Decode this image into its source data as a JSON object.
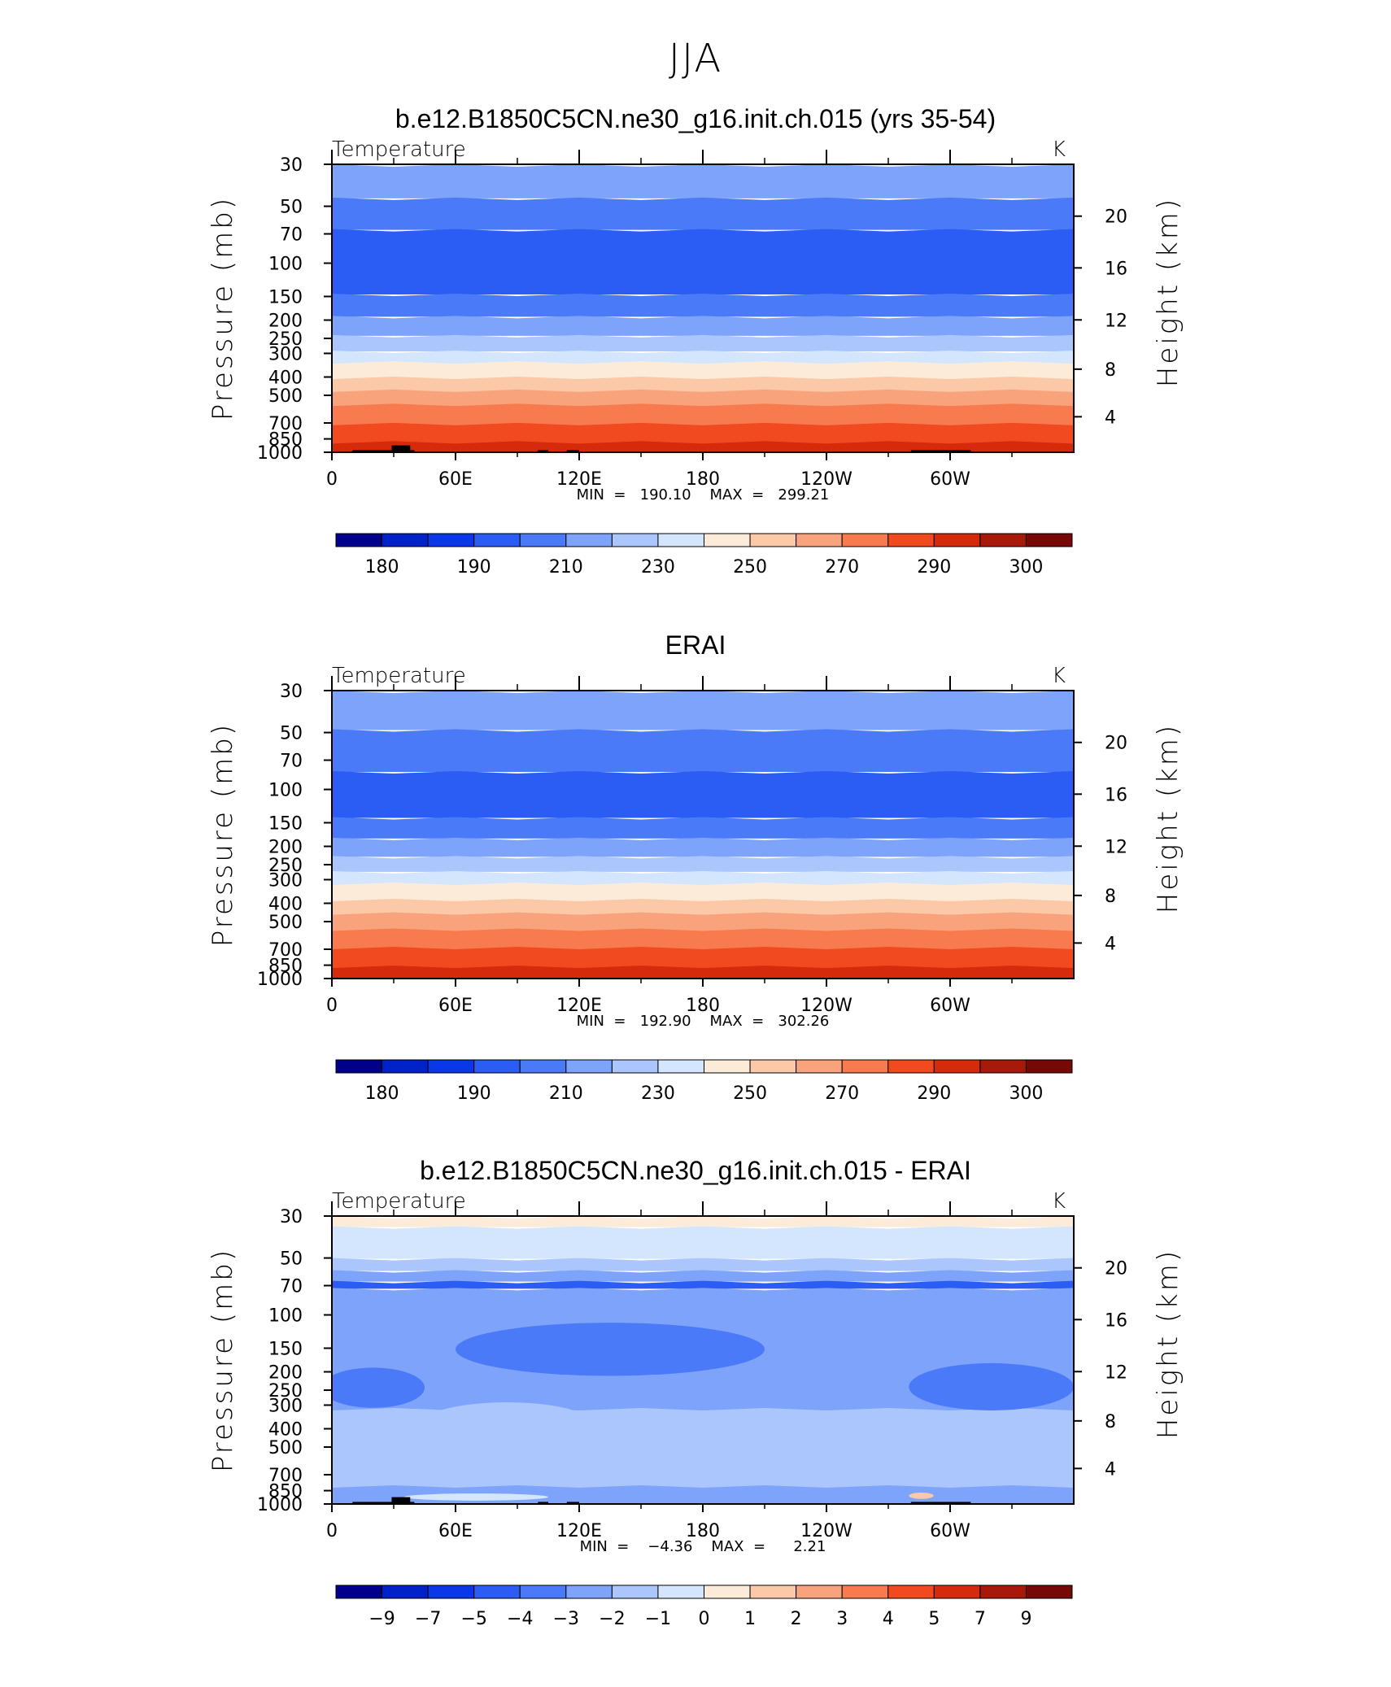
{
  "page_title": "JJA",
  "chart_data": [
    {
      "type": "heatmap",
      "title": "b.e12.B1850C5CN.ne30_g16.init.ch.015 (yrs 35-54)",
      "variable": "Temperature",
      "units": "K",
      "ylabel": "Pressure (mb)",
      "ylabel_right": "Height (km)",
      "x_ticks": [
        "0",
        "60E",
        "120E",
        "180",
        "120W",
        "60W"
      ],
      "x_tick_lon": [
        0,
        60,
        120,
        180,
        240,
        300
      ],
      "xlim": [
        0,
        360
      ],
      "y_ticks": [
        "30",
        "50",
        "70",
        "100",
        "150",
        "200",
        "250",
        "300",
        "400",
        "500",
        "700",
        "850",
        "1000"
      ],
      "y_tick_values": [
        30,
        50,
        70,
        100,
        150,
        200,
        250,
        300,
        400,
        500,
        700,
        850,
        1000
      ],
      "ylim": [
        1000,
        30
      ],
      "y_scale": "log",
      "height_ticks": [
        "20",
        "16",
        "12",
        "8",
        "4"
      ],
      "height_tick_pressure": [
        56.4,
        105.9,
        199.5,
        363.5,
        649
      ],
      "min_label": "MIN  =   190.10    MAX  =   299.21",
      "colorbar_labels": [
        "180",
        "190",
        "210",
        "230",
        "250",
        "270",
        "290",
        "300"
      ],
      "colorbar_colors": [
        "#00008b",
        "#0022c8",
        "#0a38e8",
        "#2b5cf4",
        "#4a7af8",
        "#7ea3fa",
        "#aac6fc",
        "#d3e6fd",
        "#fcebd9",
        "#fbc9a7",
        "#f9a37d",
        "#f77b4e",
        "#f14a1f",
        "#d62a0c",
        "#a71a0a",
        "#760808"
      ],
      "bands": [
        {
          "p_top": 30,
          "p_bottom": 45,
          "color": "#7ea3fa"
        },
        {
          "p_top": 45,
          "p_bottom": 66,
          "color": "#4a7af8"
        },
        {
          "p_top": 66,
          "p_bottom": 145,
          "color": "#2b5cf4"
        },
        {
          "p_top": 145,
          "p_bottom": 190,
          "color": "#4a7af8"
        },
        {
          "p_top": 190,
          "p_bottom": 240,
          "color": "#7ea3fa"
        },
        {
          "p_top": 240,
          "p_bottom": 290,
          "color": "#aac6fc"
        },
        {
          "p_top": 290,
          "p_bottom": 340,
          "color": "#d3e6fd"
        },
        {
          "p_top": 340,
          "p_bottom": 410,
          "color": "#fcebd9"
        },
        {
          "p_top": 410,
          "p_bottom": 480,
          "color": "#fbc9a7"
        },
        {
          "p_top": 480,
          "p_bottom": 570,
          "color": "#f9a37d"
        },
        {
          "p_top": 570,
          "p_bottom": 720,
          "color": "#f77b4e"
        },
        {
          "p_top": 720,
          "p_bottom": 900,
          "color": "#f14a1f"
        },
        {
          "p_top": 900,
          "p_bottom": 1000,
          "color": "#d62a0c"
        }
      ],
      "topography": [
        {
          "lon_start": 10,
          "lon_end": 40,
          "p_top": 975
        },
        {
          "lon_start": 29,
          "lon_end": 38,
          "p_top": 920
        },
        {
          "lon_start": 100,
          "lon_end": 105,
          "p_top": 975
        },
        {
          "lon_start": 114,
          "lon_end": 120,
          "p_top": 975
        },
        {
          "lon_start": 281,
          "lon_end": 310,
          "p_top": 975
        }
      ]
    },
    {
      "type": "heatmap",
      "title": "ERAI",
      "variable": "Temperature",
      "units": "K",
      "ylabel": "Pressure (mb)",
      "ylabel_right": "Height (km)",
      "x_ticks": [
        "0",
        "60E",
        "120E",
        "180",
        "120W",
        "60W"
      ],
      "x_tick_lon": [
        0,
        60,
        120,
        180,
        240,
        300
      ],
      "xlim": [
        0,
        360
      ],
      "y_ticks": [
        "30",
        "50",
        "70",
        "100",
        "150",
        "200",
        "250",
        "300",
        "400",
        "500",
        "700",
        "850",
        "1000"
      ],
      "y_tick_values": [
        30,
        50,
        70,
        100,
        150,
        200,
        250,
        300,
        400,
        500,
        700,
        850,
        1000
      ],
      "ylim": [
        1000,
        30
      ],
      "y_scale": "log",
      "height_ticks": [
        "20",
        "16",
        "12",
        "8",
        "4"
      ],
      "height_tick_pressure": [
        56.4,
        105.9,
        199.5,
        363.5,
        649
      ],
      "min_label": "MIN  =   192.90    MAX  =   302.26",
      "colorbar_labels": [
        "180",
        "190",
        "210",
        "230",
        "250",
        "270",
        "290",
        "300"
      ],
      "colorbar_colors": [
        "#00008b",
        "#0022c8",
        "#0a38e8",
        "#2b5cf4",
        "#4a7af8",
        "#7ea3fa",
        "#aac6fc",
        "#d3e6fd",
        "#fcebd9",
        "#fbc9a7",
        "#f9a37d",
        "#f77b4e",
        "#f14a1f",
        "#d62a0c",
        "#a71a0a",
        "#760808"
      ],
      "bands": [
        {
          "p_top": 30,
          "p_bottom": 48,
          "color": "#7ea3fa"
        },
        {
          "p_top": 48,
          "p_bottom": 80,
          "color": "#4a7af8"
        },
        {
          "p_top": 80,
          "p_bottom": 140,
          "color": "#2b5cf4"
        },
        {
          "p_top": 140,
          "p_bottom": 180,
          "color": "#4a7af8"
        },
        {
          "p_top": 180,
          "p_bottom": 225,
          "color": "#7ea3fa"
        },
        {
          "p_top": 225,
          "p_bottom": 270,
          "color": "#aac6fc"
        },
        {
          "p_top": 270,
          "p_bottom": 320,
          "color": "#d3e6fd"
        },
        {
          "p_top": 320,
          "p_bottom": 390,
          "color": "#fcebd9"
        },
        {
          "p_top": 390,
          "p_bottom": 460,
          "color": "#fbc9a7"
        },
        {
          "p_top": 460,
          "p_bottom": 560,
          "color": "#f9a37d"
        },
        {
          "p_top": 560,
          "p_bottom": 700,
          "color": "#f77b4e"
        },
        {
          "p_top": 700,
          "p_bottom": 880,
          "color": "#f14a1f"
        },
        {
          "p_top": 880,
          "p_bottom": 1000,
          "color": "#d62a0c"
        }
      ],
      "topography": []
    },
    {
      "type": "heatmap",
      "title": "b.e12.B1850C5CN.ne30_g16.init.ch.015 - ERAI",
      "variable": "Temperature",
      "units": "K",
      "ylabel": "Pressure (mb)",
      "ylabel_right": "Height (km)",
      "x_ticks": [
        "0",
        "60E",
        "120E",
        "180",
        "120W",
        "60W"
      ],
      "x_tick_lon": [
        0,
        60,
        120,
        180,
        240,
        300
      ],
      "xlim": [
        0,
        360
      ],
      "y_ticks": [
        "30",
        "50",
        "70",
        "100",
        "150",
        "200",
        "250",
        "300",
        "400",
        "500",
        "700",
        "850",
        "1000"
      ],
      "y_tick_values": [
        30,
        50,
        70,
        100,
        150,
        200,
        250,
        300,
        400,
        500,
        700,
        850,
        1000
      ],
      "ylim": [
        1000,
        30
      ],
      "y_scale": "log",
      "height_ticks": [
        "20",
        "16",
        "12",
        "8",
        "4"
      ],
      "height_tick_pressure": [
        56.4,
        105.9,
        199.5,
        363.5,
        649
      ],
      "min_label": "MIN  =    −4.36    MAX  =      2.21",
      "colorbar_labels": [
        "−9",
        "−7",
        "−5",
        "−4",
        "−3",
        "−2",
        "−1",
        "0",
        "1",
        "2",
        "3",
        "4",
        "5",
        "7",
        "9"
      ],
      "colorbar_colors": [
        "#00008b",
        "#0022c8",
        "#0a38e8",
        "#2b5cf4",
        "#4a7af8",
        "#7ea3fa",
        "#aac6fc",
        "#d3e6fd",
        "#fcebd9",
        "#fbc9a7",
        "#f9a37d",
        "#f77b4e",
        "#f14a1f",
        "#d62a0c",
        "#a71a0a",
        "#760808"
      ],
      "bands": [
        {
          "p_top": 30,
          "p_bottom": 34,
          "color": "#fcebd9"
        },
        {
          "p_top": 34,
          "p_bottom": 50,
          "color": "#d3e6fd"
        },
        {
          "p_top": 50,
          "p_bottom": 58,
          "color": "#aac6fc"
        },
        {
          "p_top": 58,
          "p_bottom": 66,
          "color": "#7ea3fa"
        },
        {
          "p_top": 66,
          "p_bottom": 72,
          "color": "#2b5cf4"
        },
        {
          "p_top": 72,
          "p_bottom": 320,
          "color": "#7ea3fa"
        },
        {
          "p_top": 320,
          "p_bottom": 820,
          "color": "#aac6fc"
        },
        {
          "p_top": 820,
          "p_bottom": 1000,
          "color": "#7ea3fa"
        }
      ],
      "blobs": [
        {
          "lon_center": 135,
          "lon_half_width": 75,
          "p_center": 150,
          "p_half_range": [
            110,
            210
          ],
          "color": "#4a7af8"
        },
        {
          "lon_center": 320,
          "lon_half_width": 40,
          "p_center": 240,
          "p_half_range": [
            180,
            320
          ],
          "color": "#4a7af8"
        },
        {
          "lon_center": 20,
          "lon_half_width": 25,
          "p_center": 250,
          "p_half_range": [
            190,
            310
          ],
          "color": "#4a7af8"
        },
        {
          "lon_center": 85,
          "lon_half_width": 40,
          "p_center": 360,
          "p_half_range": [
            290,
            470
          ],
          "color": "#aac6fc"
        },
        {
          "lon_center": 70,
          "lon_half_width": 35,
          "p_center": 920,
          "p_half_range": [
            880,
            960
          ],
          "color": "#d3e6fd"
        },
        {
          "lon_center": 286,
          "lon_half_width": 6,
          "p_center": 900,
          "p_half_range": [
            870,
            940
          ],
          "color": "#fbc9a7"
        }
      ],
      "topography": [
        {
          "lon_start": 10,
          "lon_end": 40,
          "p_top": 975
        },
        {
          "lon_start": 29,
          "lon_end": 38,
          "p_top": 920
        },
        {
          "lon_start": 100,
          "lon_end": 105,
          "p_top": 975
        },
        {
          "lon_start": 114,
          "lon_end": 120,
          "p_top": 975
        },
        {
          "lon_start": 281,
          "lon_end": 310,
          "p_top": 975
        }
      ]
    }
  ]
}
